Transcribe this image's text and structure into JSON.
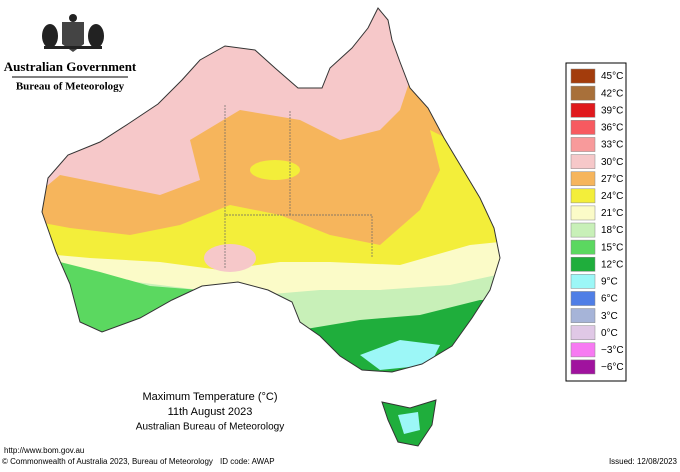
{
  "header": {
    "government": "Australian Government",
    "bureau": "Bureau of Meteorology"
  },
  "legend": [
    {
      "label": "45°C",
      "color": "#a33c0c"
    },
    {
      "label": "42°C",
      "color": "#a8703a"
    },
    {
      "label": "39°C",
      "color": "#e0191d"
    },
    {
      "label": "36°C",
      "color": "#f75a60"
    },
    {
      "label": "33°C",
      "color": "#f89a9b"
    },
    {
      "label": "30°C",
      "color": "#f6c8c9"
    },
    {
      "label": "27°C",
      "color": "#f6b55c"
    },
    {
      "label": "24°C",
      "color": "#f3ee3a"
    },
    {
      "label": "21°C",
      "color": "#fbfbc8"
    },
    {
      "label": "18°C",
      "color": "#c8f0b8"
    },
    {
      "label": "15°C",
      "color": "#5bd860"
    },
    {
      "label": "12°C",
      "color": "#1fae3c"
    },
    {
      "label": "9°C",
      "color": "#9cf7f7"
    },
    {
      "label": "6°C",
      "color": "#4f7ee6"
    },
    {
      "label": "3°C",
      "color": "#a6b4d8"
    },
    {
      "label": "0°C",
      "color": "#e0c8e6"
    },
    {
      "label": "−3°C",
      "color": "#f77af2"
    },
    {
      "label": "−6°C",
      "color": "#a0129e"
    }
  ],
  "caption": {
    "title": "Maximum Temperature (°C)",
    "date": "11th August 2023",
    "source": "Australian Bureau of Meteorology"
  },
  "footer": {
    "url": "http://www.bom.gov.au",
    "copyright": "© Commonwealth of Australia 2023, Bureau of Meteorology",
    "id_code": "ID code: AWAP",
    "issued": "Issued: 12/08/2023"
  }
}
